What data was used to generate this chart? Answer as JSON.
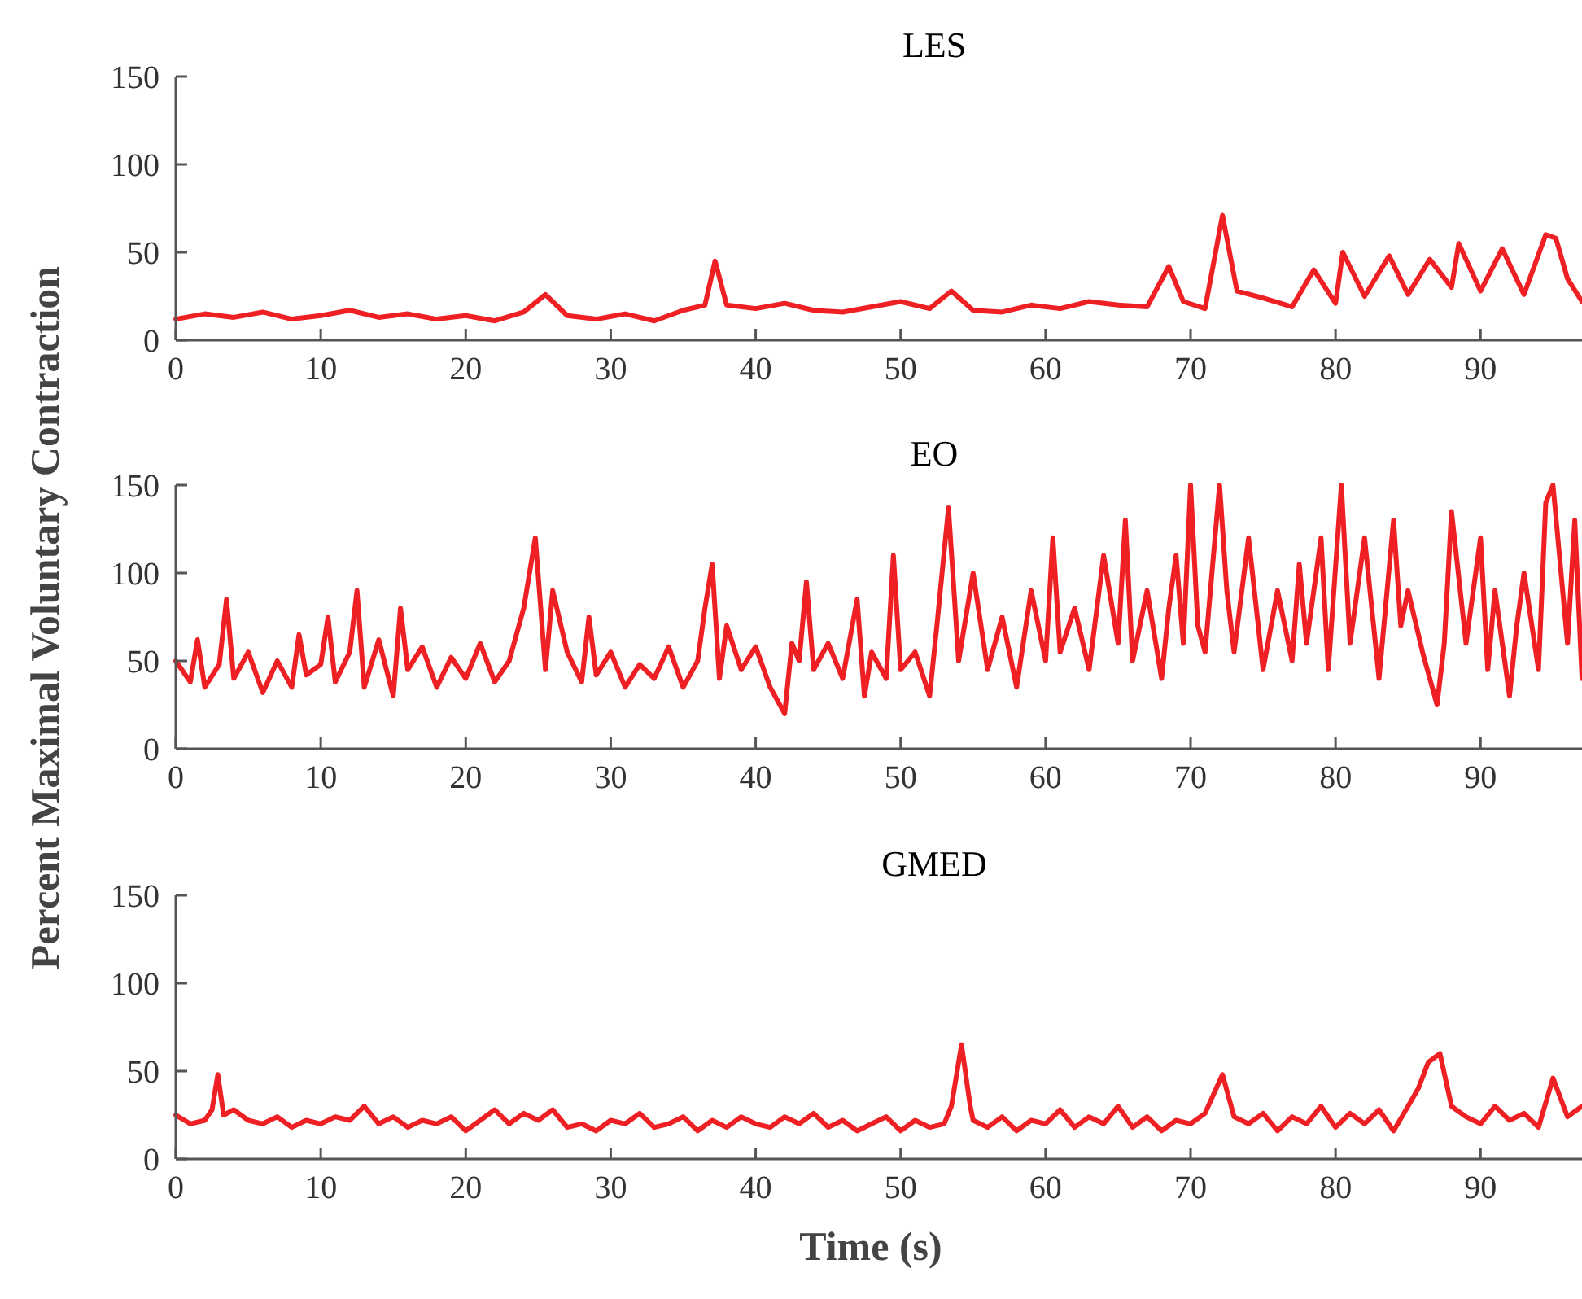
{
  "chart_data": [
    {
      "type": "line",
      "title": "LES",
      "xlim": [
        0,
        97
      ],
      "ylim": [
        0,
        150
      ],
      "xticks": [
        0,
        10,
        20,
        30,
        40,
        50,
        60,
        70,
        80,
        90
      ],
      "yticks": [
        0,
        50,
        100,
        150
      ],
      "x": [
        0,
        2,
        4,
        6,
        8,
        10,
        12,
        14,
        16,
        18,
        20,
        22,
        24,
        25.5,
        27,
        29,
        31,
        33,
        35,
        36.5,
        37.2,
        38,
        40,
        42,
        44,
        46,
        48,
        50,
        52,
        53.5,
        55,
        57,
        59,
        61,
        63,
        65,
        67,
        68.5,
        69.5,
        71,
        72.2,
        73.2,
        75,
        77,
        78.5,
        80,
        80.5,
        82,
        83.7,
        85,
        86.5,
        88,
        88.5,
        90,
        91.5,
        93,
        94.5,
        95.2,
        96,
        97
      ],
      "series": [
        {
          "color": "#ee2024",
          "values": [
            12,
            15,
            13,
            16,
            12,
            14,
            17,
            13,
            15,
            12,
            14,
            11,
            16,
            26,
            14,
            12,
            15,
            11,
            17,
            20,
            45,
            20,
            18,
            21,
            17,
            16,
            19,
            22,
            18,
            28,
            17,
            16,
            20,
            18,
            22,
            20,
            19,
            42,
            22,
            18,
            71,
            28,
            24,
            19,
            40,
            21,
            50,
            25,
            48,
            26,
            46,
            30,
            55,
            28,
            52,
            26,
            60,
            58,
            35,
            22
          ]
        }
      ]
    },
    {
      "type": "line",
      "title": "EO",
      "ylabel": "Percent Maximal Voluntary Contraction",
      "xlim": [
        0,
        97
      ],
      "ylim": [
        0,
        150
      ],
      "xticks": [
        0,
        10,
        20,
        30,
        40,
        50,
        60,
        70,
        80,
        90
      ],
      "yticks": [
        0,
        50,
        100,
        150
      ],
      "x": [
        0,
        1,
        1.5,
        2,
        3,
        3.5,
        4,
        5,
        6,
        7,
        8,
        8.5,
        9,
        10,
        10.5,
        11,
        12,
        12.5,
        13,
        14,
        15,
        15.5,
        16,
        17,
        18,
        19,
        20,
        21,
        22,
        23,
        24,
        24.8,
        25.5,
        26,
        27,
        28,
        28.5,
        29,
        30,
        31,
        32,
        33,
        34,
        35,
        36,
        36.5,
        37,
        37.5,
        38,
        39,
        40,
        41,
        42,
        42.5,
        43,
        43.5,
        44,
        45,
        46,
        47,
        47.5,
        48,
        49,
        49.5,
        50,
        51,
        52,
        52.5,
        53.3,
        54,
        55,
        56,
        57,
        58,
        59,
        60,
        60.5,
        61,
        62,
        63,
        64,
        65,
        65.5,
        66,
        67,
        68,
        68.5,
        69,
        69.5,
        70,
        70.5,
        71,
        72,
        72.5,
        73,
        74,
        75,
        76,
        77,
        77.5,
        78,
        79,
        79.5,
        80.4,
        81,
        82,
        83,
        84,
        84.5,
        85,
        86,
        87,
        87.5,
        88,
        89,
        90,
        90.5,
        91,
        92,
        92.5,
        93,
        94,
        94.5,
        95,
        96,
        96.5,
        97
      ],
      "series": [
        {
          "color": "#ee2024",
          "values": [
            50,
            38,
            62,
            35,
            48,
            85,
            40,
            55,
            32,
            50,
            35,
            65,
            42,
            48,
            75,
            38,
            55,
            90,
            35,
            62,
            30,
            80,
            45,
            58,
            35,
            52,
            40,
            60,
            38,
            50,
            80,
            120,
            45,
            90,
            55,
            38,
            75,
            42,
            55,
            35,
            48,
            40,
            58,
            35,
            50,
            80,
            105,
            40,
            70,
            45,
            58,
            35,
            20,
            60,
            50,
            95,
            45,
            60,
            40,
            85,
            30,
            55,
            40,
            110,
            45,
            55,
            30,
            70,
            137,
            50,
            100,
            45,
            75,
            35,
            90,
            50,
            120,
            55,
            80,
            45,
            110,
            60,
            130,
            50,
            90,
            40,
            80,
            110,
            60,
            150,
            70,
            55,
            150,
            90,
            55,
            120,
            45,
            90,
            50,
            105,
            60,
            120,
            45,
            150,
            60,
            120,
            40,
            130,
            70,
            90,
            55,
            25,
            60,
            135,
            60,
            120,
            45,
            90,
            30,
            70,
            100,
            45,
            140,
            150,
            60,
            130,
            40
          ]
        }
      ]
    },
    {
      "type": "line",
      "title": "GMED",
      "xlabel": "Time (s)",
      "xlim": [
        0,
        97
      ],
      "ylim": [
        0,
        150
      ],
      "xticks": [
        0,
        10,
        20,
        30,
        40,
        50,
        60,
        70,
        80,
        90
      ],
      "yticks": [
        0,
        50,
        100,
        150
      ],
      "x": [
        0,
        1,
        2,
        2.5,
        2.9,
        3.3,
        4,
        5,
        6,
        7,
        8,
        9,
        10,
        11,
        12,
        13,
        14,
        15,
        16,
        17,
        18,
        19,
        20,
        21,
        22,
        23,
        24,
        25,
        26,
        27,
        28,
        29,
        30,
        31,
        32,
        33,
        34,
        35,
        36,
        37,
        38,
        39,
        40,
        41,
        42,
        43,
        44,
        45,
        46,
        47,
        48,
        49,
        50,
        51,
        52,
        53,
        53.5,
        54.2,
        54.8,
        55,
        56,
        57,
        58,
        59,
        60,
        61,
        62,
        63,
        64,
        65,
        66,
        67,
        68,
        69,
        70,
        71,
        72.2,
        73,
        74,
        75,
        76,
        77,
        78,
        79,
        80,
        81,
        82,
        83,
        84,
        85,
        85.7,
        86.4,
        87.2,
        88,
        89,
        90,
        91,
        92,
        93,
        94,
        95,
        96,
        97
      ],
      "series": [
        {
          "color": "#ee2024",
          "values": [
            25,
            20,
            22,
            28,
            48,
            25,
            28,
            22,
            20,
            24,
            18,
            22,
            20,
            24,
            22,
            30,
            20,
            24,
            18,
            22,
            20,
            24,
            16,
            22,
            28,
            20,
            26,
            22,
            28,
            18,
            20,
            16,
            22,
            20,
            26,
            18,
            20,
            24,
            16,
            22,
            18,
            24,
            20,
            18,
            24,
            20,
            26,
            18,
            22,
            16,
            20,
            24,
            16,
            22,
            18,
            20,
            30,
            65,
            30,
            22,
            18,
            24,
            16,
            22,
            20,
            28,
            18,
            24,
            20,
            30,
            18,
            24,
            16,
            22,
            20,
            26,
            48,
            24,
            20,
            26,
            16,
            24,
            20,
            30,
            18,
            26,
            20,
            28,
            16,
            30,
            40,
            55,
            60,
            30,
            24,
            20,
            30,
            22,
            26,
            18,
            46,
            24,
            30
          ]
        }
      ]
    }
  ]
}
